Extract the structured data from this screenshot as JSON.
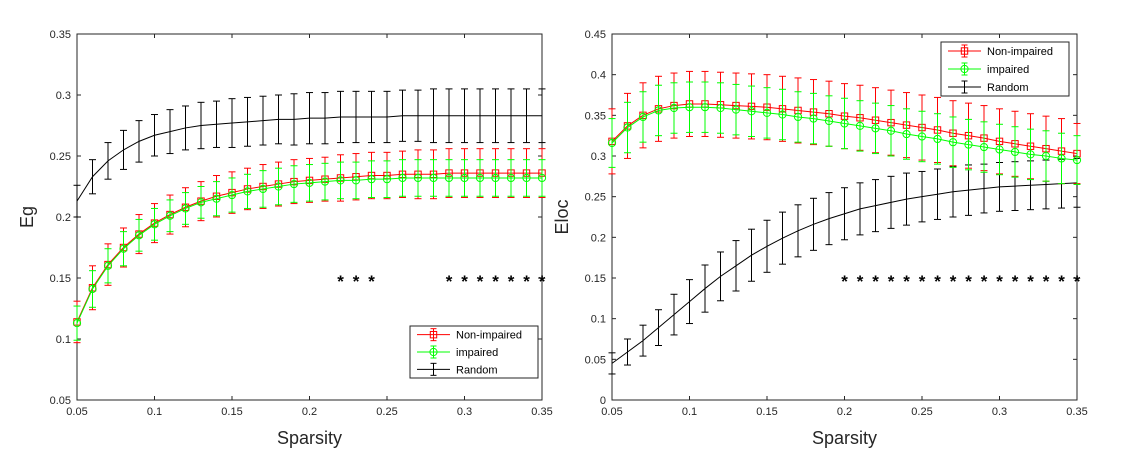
{
  "chart_data": [
    {
      "type": "line",
      "xlabel": "Sparsity",
      "ylabel": "Eg",
      "xlim": [
        0.05,
        0.35
      ],
      "ylim": [
        0.05,
        0.35
      ],
      "xticks": [
        "0.05",
        "0.1",
        "0.15",
        "0.2",
        "0.25",
        "0.3",
        "0.35"
      ],
      "yticks": [
        "0.05",
        "0.1",
        "0.15",
        "0.2",
        "0.25",
        "0.3",
        "0.35"
      ],
      "legend_position": "bottom-right",
      "x": [
        0.05,
        0.06,
        0.07,
        0.08,
        0.09,
        0.1,
        0.11,
        0.12,
        0.13,
        0.14,
        0.15,
        0.16,
        0.17,
        0.18,
        0.19,
        0.2,
        0.21,
        0.22,
        0.23,
        0.24,
        0.25,
        0.26,
        0.27,
        0.28,
        0.29,
        0.3,
        0.31,
        0.32,
        0.33,
        0.34,
        0.35
      ],
      "series": [
        {
          "name": "Non-impaired",
          "color": "#ff0000",
          "marker": "square",
          "values": [
            0.114,
            0.142,
            0.161,
            0.175,
            0.186,
            0.195,
            0.202,
            0.208,
            0.213,
            0.217,
            0.22,
            0.223,
            0.225,
            0.227,
            0.229,
            0.23,
            0.231,
            0.232,
            0.233,
            0.234,
            0.234,
            0.235,
            0.235,
            0.235,
            0.236,
            0.236,
            0.236,
            0.236,
            0.236,
            0.236,
            0.236
          ],
          "error": [
            0.017,
            0.018,
            0.017,
            0.016,
            0.016,
            0.016,
            0.016,
            0.016,
            0.016,
            0.017,
            0.017,
            0.017,
            0.018,
            0.018,
            0.018,
            0.018,
            0.018,
            0.019,
            0.019,
            0.019,
            0.019,
            0.019,
            0.02,
            0.02,
            0.02,
            0.02,
            0.02,
            0.02,
            0.02,
            0.02,
            0.02
          ]
        },
        {
          "name": "impaired",
          "color": "#00ff00",
          "marker": "circle",
          "values": [
            0.113,
            0.141,
            0.16,
            0.174,
            0.185,
            0.194,
            0.201,
            0.207,
            0.212,
            0.215,
            0.218,
            0.221,
            0.223,
            0.225,
            0.227,
            0.228,
            0.229,
            0.23,
            0.23,
            0.231,
            0.231,
            0.232,
            0.232,
            0.232,
            0.232,
            0.232,
            0.232,
            0.232,
            0.232,
            0.232,
            0.232
          ],
          "error": [
            0.014,
            0.015,
            0.014,
            0.014,
            0.013,
            0.013,
            0.013,
            0.013,
            0.013,
            0.014,
            0.014,
            0.014,
            0.015,
            0.015,
            0.015,
            0.015,
            0.015,
            0.015,
            0.015,
            0.015,
            0.015,
            0.015,
            0.015,
            0.015,
            0.015,
            0.015,
            0.015,
            0.015,
            0.015,
            0.015,
            0.015
          ]
        },
        {
          "name": "Random",
          "color": "#000000",
          "marker": "none",
          "values": [
            0.213,
            0.233,
            0.246,
            0.255,
            0.262,
            0.267,
            0.27,
            0.273,
            0.275,
            0.276,
            0.277,
            0.278,
            0.279,
            0.28,
            0.28,
            0.281,
            0.281,
            0.282,
            0.282,
            0.282,
            0.282,
            0.283,
            0.283,
            0.283,
            0.283,
            0.283,
            0.283,
            0.283,
            0.283,
            0.283,
            0.283
          ],
          "error": [
            0.013,
            0.014,
            0.015,
            0.016,
            0.017,
            0.017,
            0.018,
            0.018,
            0.019,
            0.019,
            0.02,
            0.02,
            0.02,
            0.02,
            0.021,
            0.021,
            0.021,
            0.021,
            0.021,
            0.021,
            0.021,
            0.021,
            0.021,
            0.022,
            0.022,
            0.022,
            0.022,
            0.022,
            0.022,
            0.022,
            0.022
          ]
        }
      ],
      "significance": {
        "symbol": "*",
        "y": 0.15,
        "x": [
          0.22,
          0.23,
          0.24,
          0.29,
          0.3,
          0.31,
          0.32,
          0.33,
          0.34,
          0.35
        ]
      }
    },
    {
      "type": "line",
      "xlabel": "Sparsity",
      "ylabel": "Eloc",
      "xlim": [
        0.05,
        0.35
      ],
      "ylim": [
        0,
        0.45
      ],
      "xticks": [
        "0.05",
        "0.1",
        "0.15",
        "0.2",
        "0.25",
        "0.3",
        "0.35"
      ],
      "yticks": [
        "0",
        "0.05",
        "0.1",
        "0.15",
        "0.2",
        "0.25",
        "0.3",
        "0.35",
        "0.4",
        "0.45"
      ],
      "legend_position": "top-right",
      "x": [
        0.05,
        0.06,
        0.07,
        0.08,
        0.09,
        0.1,
        0.11,
        0.12,
        0.13,
        0.14,
        0.15,
        0.16,
        0.17,
        0.18,
        0.19,
        0.2,
        0.21,
        0.22,
        0.23,
        0.24,
        0.25,
        0.26,
        0.27,
        0.28,
        0.29,
        0.3,
        0.31,
        0.32,
        0.33,
        0.34,
        0.35
      ],
      "series": [
        {
          "name": "Non-impaired",
          "color": "#ff0000",
          "marker": "square",
          "values": [
            0.318,
            0.337,
            0.35,
            0.358,
            0.362,
            0.364,
            0.364,
            0.363,
            0.362,
            0.361,
            0.36,
            0.358,
            0.356,
            0.354,
            0.352,
            0.349,
            0.347,
            0.344,
            0.341,
            0.338,
            0.335,
            0.332,
            0.328,
            0.325,
            0.322,
            0.318,
            0.315,
            0.312,
            0.309,
            0.306,
            0.303
          ],
          "error": [
            0.04,
            0.04,
            0.04,
            0.04,
            0.04,
            0.04,
            0.04,
            0.04,
            0.04,
            0.04,
            0.04,
            0.04,
            0.04,
            0.04,
            0.04,
            0.04,
            0.04,
            0.04,
            0.04,
            0.04,
            0.04,
            0.04,
            0.04,
            0.04,
            0.04,
            0.04,
            0.04,
            0.04,
            0.04,
            0.04,
            0.037
          ]
        },
        {
          "name": "impaired",
          "color": "#00ff00",
          "marker": "circle",
          "values": [
            0.316,
            0.335,
            0.348,
            0.356,
            0.359,
            0.36,
            0.36,
            0.359,
            0.357,
            0.355,
            0.353,
            0.351,
            0.348,
            0.346,
            0.343,
            0.34,
            0.337,
            0.334,
            0.331,
            0.327,
            0.324,
            0.321,
            0.317,
            0.314,
            0.311,
            0.308,
            0.305,
            0.302,
            0.3,
            0.297,
            0.295
          ],
          "error": [
            0.03,
            0.031,
            0.031,
            0.031,
            0.031,
            0.031,
            0.031,
            0.031,
            0.031,
            0.031,
            0.031,
            0.031,
            0.031,
            0.031,
            0.031,
            0.031,
            0.031,
            0.031,
            0.031,
            0.031,
            0.031,
            0.031,
            0.031,
            0.031,
            0.031,
            0.031,
            0.031,
            0.031,
            0.031,
            0.031,
            0.03
          ]
        },
        {
          "name": "Random",
          "color": "#000000",
          "marker": "none",
          "values": [
            0.045,
            0.059,
            0.073,
            0.089,
            0.105,
            0.121,
            0.137,
            0.152,
            0.165,
            0.178,
            0.189,
            0.199,
            0.208,
            0.216,
            0.223,
            0.229,
            0.235,
            0.239,
            0.243,
            0.247,
            0.25,
            0.253,
            0.256,
            0.258,
            0.26,
            0.262,
            0.263,
            0.264,
            0.265,
            0.266,
            0.267
          ],
          "error": [
            0.013,
            0.016,
            0.019,
            0.022,
            0.025,
            0.027,
            0.029,
            0.03,
            0.031,
            0.032,
            0.032,
            0.032,
            0.032,
            0.032,
            0.032,
            0.032,
            0.032,
            0.032,
            0.032,
            0.032,
            0.031,
            0.031,
            0.031,
            0.031,
            0.03,
            0.03,
            0.03,
            0.03,
            0.03,
            0.03,
            0.03
          ]
        }
      ],
      "significance": {
        "symbol": "*",
        "y": 0.15,
        "x": [
          0.2,
          0.21,
          0.22,
          0.23,
          0.24,
          0.25,
          0.26,
          0.27,
          0.28,
          0.29,
          0.3,
          0.31,
          0.32,
          0.33,
          0.34,
          0.35
        ]
      }
    }
  ]
}
